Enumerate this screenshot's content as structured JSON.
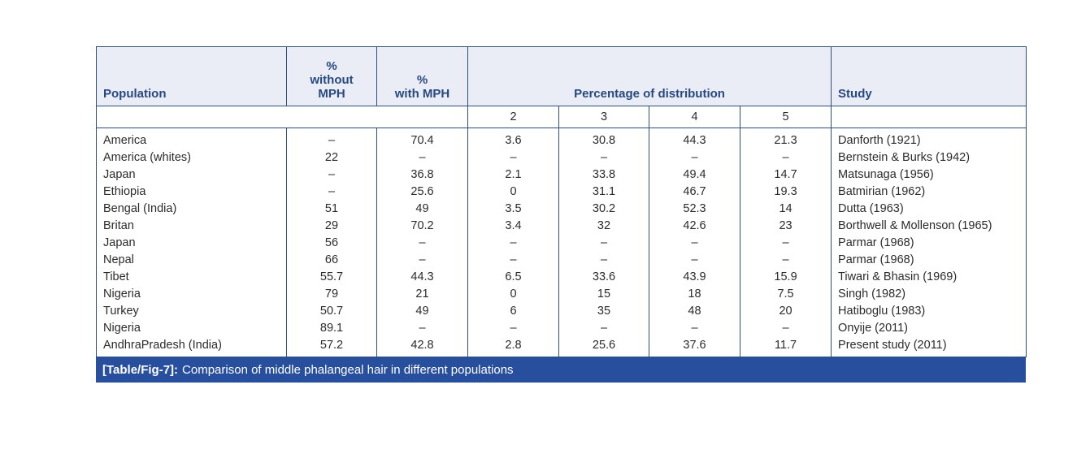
{
  "table": {
    "caption": {
      "tag": "[Table/Fig-7]:",
      "text": "Comparison of middle phalangeal hair in different populations"
    },
    "header": {
      "population": "Population",
      "without_mph": "%\nwithout\nMPH",
      "with_mph": "%\nwith MPH",
      "distribution": "Percentage of distribution",
      "study": "Study",
      "sub_columns": {
        "c2": "2",
        "c3": "3",
        "c4": "4",
        "c5": "5"
      }
    },
    "rows": [
      {
        "population": "America",
        "without_mph": "–",
        "with_mph": "70.4",
        "d2": "3.6",
        "d3": "30.8",
        "d4": "44.3",
        "d5": "21.3",
        "study": "Danforth (1921)"
      },
      {
        "population": "America (whites)",
        "without_mph": "22",
        "with_mph": "–",
        "d2": "–",
        "d3": "–",
        "d4": "–",
        "d5": "–",
        "study": "Bernstein & Burks (1942)"
      },
      {
        "population": "Japan",
        "without_mph": "–",
        "with_mph": "36.8",
        "d2": "2.1",
        "d3": "33.8",
        "d4": "49.4",
        "d5": "14.7",
        "study": "Matsunaga (1956)"
      },
      {
        "population": "Ethiopia",
        "without_mph": "–",
        "with_mph": "25.6",
        "d2": "0",
        "d3": "31.1",
        "d4": "46.7",
        "d5": "19.3",
        "study": "Batmirian (1962)"
      },
      {
        "population": "Bengal (India)",
        "without_mph": "51",
        "with_mph": "49",
        "d2": "3.5",
        "d3": "30.2",
        "d4": "52.3",
        "d5": "14",
        "study": "Dutta (1963)"
      },
      {
        "population": "Britan",
        "without_mph": "29",
        "with_mph": "70.2",
        "d2": "3.4",
        "d3": "32",
        "d4": "42.6",
        "d5": "23",
        "study": "Borthwell & Mollenson (1965)"
      },
      {
        "population": "Japan",
        "without_mph": "56",
        "with_mph": "–",
        "d2": "–",
        "d3": "–",
        "d4": "–",
        "d5": "–",
        "study": "Parmar (1968)"
      },
      {
        "population": "Nepal",
        "without_mph": "66",
        "with_mph": "–",
        "d2": "–",
        "d3": "–",
        "d4": "–",
        "d5": "–",
        "study": "Parmar (1968)"
      },
      {
        "population": "Tibet",
        "without_mph": "55.7",
        "with_mph": "44.3",
        "d2": "6.5",
        "d3": "33.6",
        "d4": "43.9",
        "d5": "15.9",
        "study": "Tiwari & Bhasin (1969)"
      },
      {
        "population": "Nigeria",
        "without_mph": "79",
        "with_mph": "21",
        "d2": "0",
        "d3": "15",
        "d4": "18",
        "d5": "7.5",
        "study": "Singh (1982)"
      },
      {
        "population": "Turkey",
        "without_mph": "50.7",
        "with_mph": "49",
        "d2": "6",
        "d3": "35",
        "d4": "48",
        "d5": "20",
        "study": "Hatiboglu (1983)"
      },
      {
        "population": "Nigeria",
        "without_mph": "89.1",
        "with_mph": "–",
        "d2": "–",
        "d3": "–",
        "d4": "–",
        "d5": "–",
        "study": "Onyije (2011)"
      },
      {
        "population": "AndhraPradesh (India)",
        "without_mph": "57.2",
        "with_mph": "42.8",
        "d2": "2.8",
        "d3": "25.6",
        "d4": "37.6",
        "d5": "11.7",
        "study": "Present study (2011)"
      }
    ],
    "colors": {
      "header_bg": "#eaecf6",
      "header_text": "#27497f",
      "border": "#304e78",
      "caption_bg": "#274f9e",
      "caption_text": "#ffffff",
      "body_text": "#2b2b2b"
    }
  }
}
